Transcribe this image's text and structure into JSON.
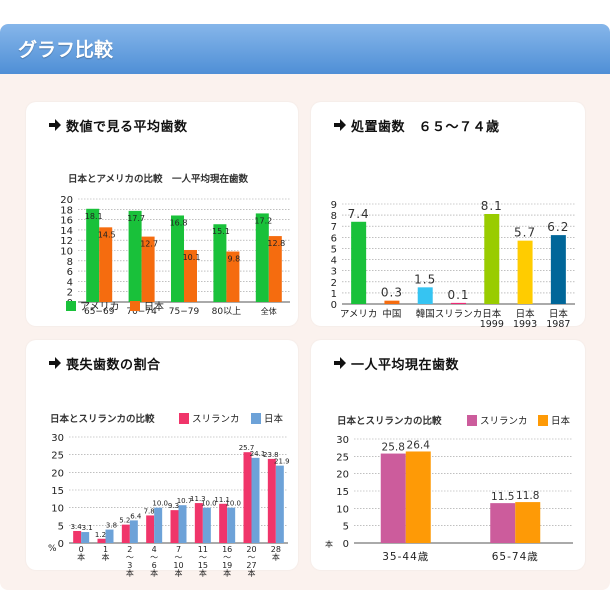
{
  "header": {
    "title": "グラフ比較"
  },
  "colors": {
    "america": "#19c13a",
    "japan_orange": "#f56c0f",
    "srilanka_pink": "#f0356a",
    "japan_blue": "#6da2d8",
    "srilanka_mauve": "#cc5c9c",
    "japan_amber": "#fe9a06"
  },
  "panels": {
    "avg_teeth": {
      "title": "数値で見る平均歯数",
      "subtitle": "日本とアメリカの比較　一人平均現在歯数",
      "legend": [
        "アメリカ",
        "日本"
      ]
    },
    "treatment": {
      "title": "処置歯数　６５～７４歳"
    },
    "loss_ratio": {
      "title": "喪失歯数の割合",
      "subtitle": "日本とスリランカの比較",
      "legend": [
        "スリランカ",
        "日本"
      ]
    },
    "current_teeth": {
      "title": "一人平均現在歯数",
      "subtitle": "日本とスリランカの比較",
      "legend": [
        "スリランカ",
        "日本"
      ]
    }
  },
  "chart_data": [
    {
      "type": "bar",
      "title": "日本とアメリカの比較　一人平均現在歯数",
      "categories": [
        "65−69",
        "70−74",
        "75−79",
        "80以上",
        "全体"
      ],
      "series": [
        {
          "name": "アメリカ",
          "values": [
            18.1,
            17.7,
            16.8,
            15.1,
            17.2
          ],
          "color": "#19c13a"
        },
        {
          "name": "日本",
          "values": [
            14.5,
            12.7,
            10.1,
            9.8,
            12.8
          ],
          "color": "#f56c0f"
        }
      ],
      "ylim": [
        0,
        20
      ],
      "yticks": [
        0,
        2,
        4,
        6,
        8,
        10,
        12,
        14,
        16,
        18,
        20
      ],
      "grid": true,
      "legend": "bottom"
    },
    {
      "type": "bar",
      "title": "処置歯数　６５～７４歳",
      "categories": [
        "アメリカ",
        "中国",
        "韓国",
        "スリランカ",
        "日本\n1999",
        "日本\n1993",
        "日本\n1987"
      ],
      "values": [
        7.4,
        0.3,
        1.5,
        0.1,
        8.1,
        5.7,
        6.2
      ],
      "labels": [
        "7.4",
        "0.3",
        "1.5",
        "0.1",
        "8.1",
        "5.7",
        "6.2"
      ],
      "colors": [
        "#19c13a",
        "#f56c0f",
        "#36c4f2",
        "#ee2a76",
        "#99cc00",
        "#ffcc00",
        "#006699"
      ],
      "ylim": [
        0,
        9
      ],
      "yticks": [
        0,
        1,
        2,
        3,
        4,
        5,
        6,
        7,
        8,
        9
      ],
      "grid": true
    },
    {
      "type": "bar",
      "title": "日本とスリランカの比較",
      "categories": [
        "0\n本",
        "1\n本",
        "2\n〜\n3\n本",
        "4\n〜\n6\n本",
        "7\n〜\n10\n本",
        "11\n〜\n15\n本",
        "16\n〜\n19\n本",
        "20\n〜\n27\n本",
        "28\n本"
      ],
      "series": [
        {
          "name": "スリランカ",
          "values": [
            3.4,
            1.2,
            5.2,
            7.8,
            9.3,
            11.3,
            11.1,
            25.7,
            23.8
          ],
          "labels": [
            "3.4",
            "1.2",
            "5.2",
            "7.8",
            "9.3",
            "11.3",
            "11.1",
            "25.7",
            "23.8"
          ],
          "color": "#f0356a"
        },
        {
          "name": "日本",
          "values": [
            3.1,
            3.8,
            6.4,
            10.0,
            10.7,
            10.0,
            10.0,
            24.1,
            21.9
          ],
          "labels": [
            "3.1",
            "3.8",
            "6.4",
            "10.0",
            "10.7",
            "10.0",
            "10.0",
            "24.1",
            "21.9"
          ],
          "color": "#6da2d8"
        }
      ],
      "ylim": [
        0,
        30
      ],
      "yticks": [
        0,
        5,
        10,
        15,
        20,
        25,
        30
      ],
      "yunit": "%",
      "grid": true,
      "legend": "top-right"
    },
    {
      "type": "bar",
      "title": "日本とスリランカの比較",
      "categories": [
        "35-44歳",
        "65-74歳"
      ],
      "series": [
        {
          "name": "スリランカ",
          "values": [
            25.8,
            11.5
          ],
          "labels": [
            "25.8",
            "11.5"
          ],
          "color": "#cc5c9c"
        },
        {
          "name": "日本",
          "values": [
            26.4,
            11.8
          ],
          "labels": [
            "26.4",
            "11.8"
          ],
          "color": "#fe9a06"
        }
      ],
      "ylim": [
        0,
        30
      ],
      "yticks": [
        0,
        5,
        10,
        15,
        20,
        25,
        30
      ],
      "yunit": "本",
      "grid": true,
      "legend": "top-right"
    }
  ]
}
